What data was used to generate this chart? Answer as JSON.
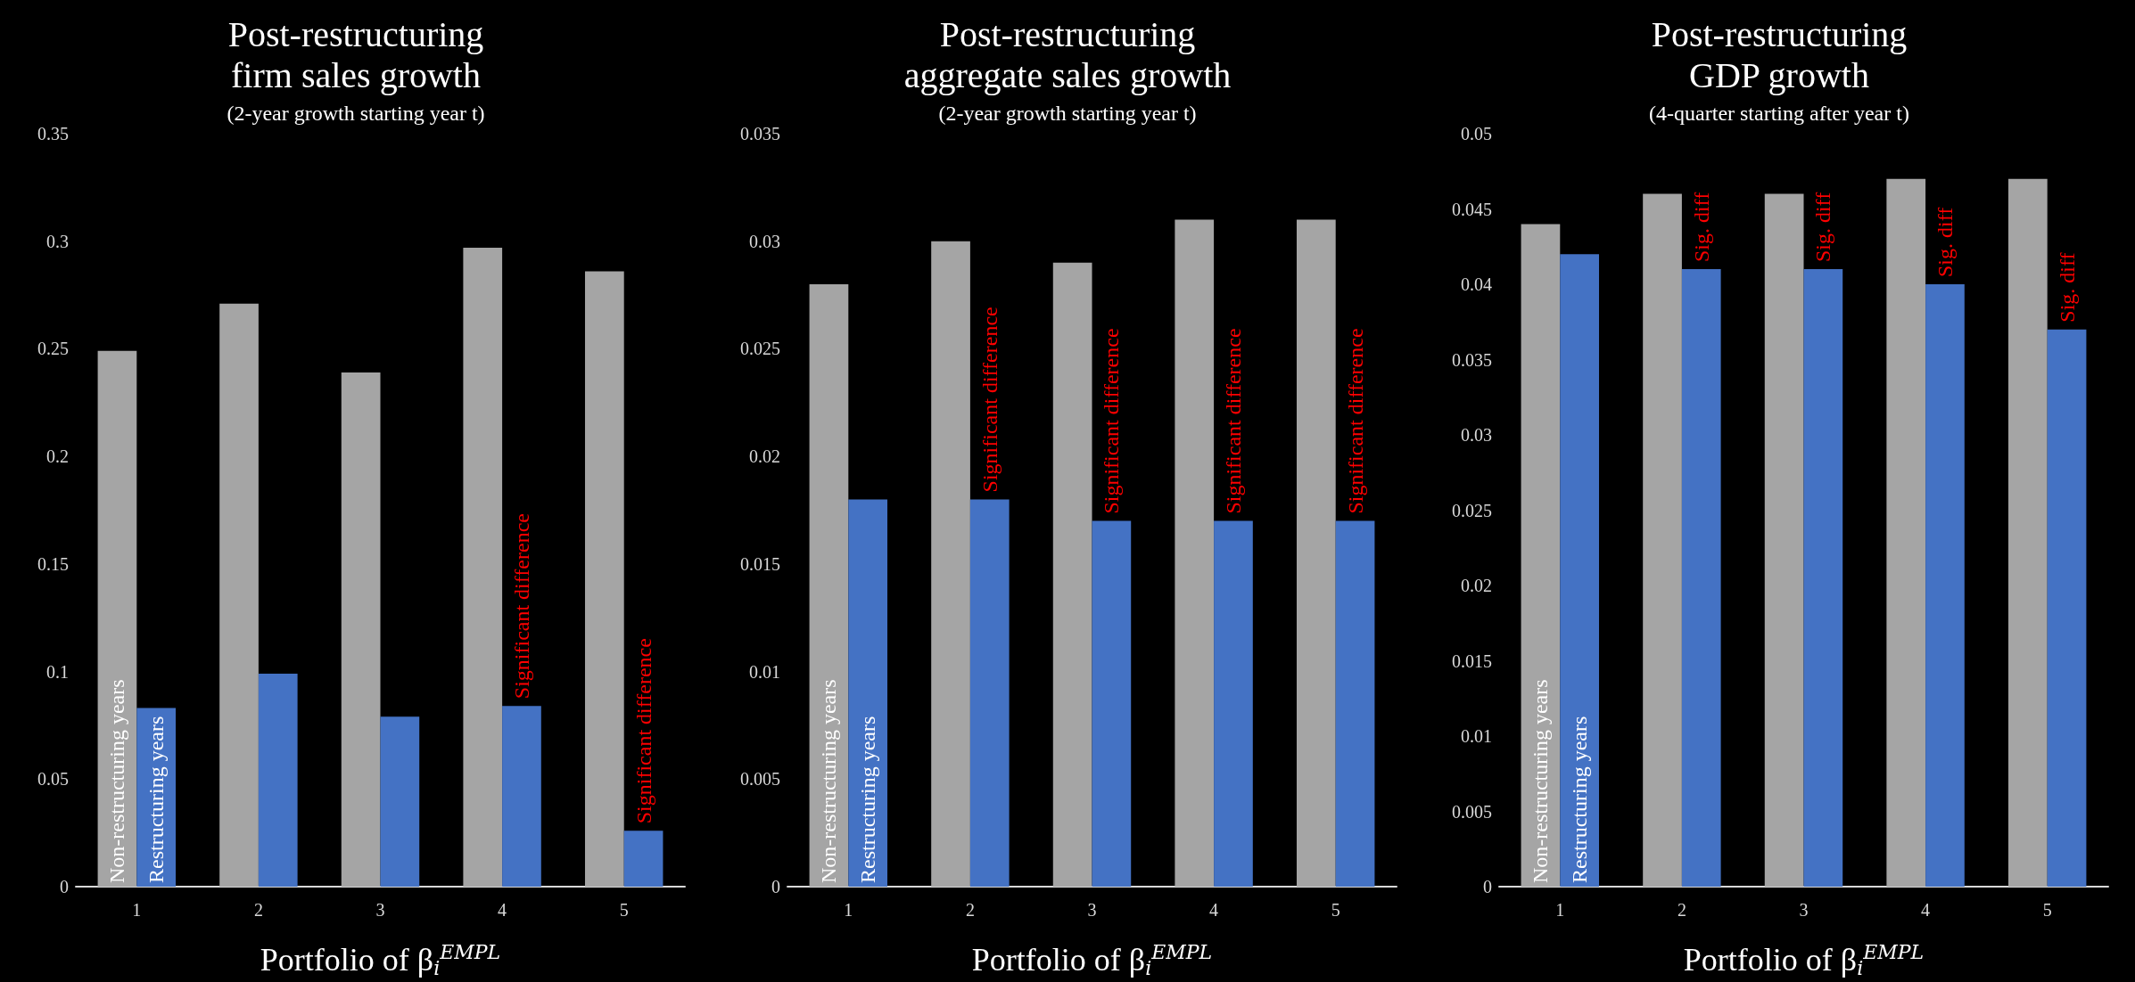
{
  "chart_data": [
    {
      "type": "bar",
      "title": "Post-restructuring\nfirm sales growth",
      "subtitle": "(2-year growth starting year t)",
      "xlabel": "Portfolio of β$_{i}$$^{EMPL}$",
      "categories": [
        "1",
        "2",
        "3",
        "4",
        "5"
      ],
      "series": [
        {
          "name": "Non-restructuring years",
          "color": "#a5a5a5",
          "values": [
            0.249,
            0.271,
            0.239,
            0.297,
            0.286
          ]
        },
        {
          "name": "Restructuring years",
          "color": "#4472c4",
          "values": [
            0.083,
            0.099,
            0.079,
            0.084,
            0.026
          ]
        }
      ],
      "ylim": [
        0,
        0.35
      ],
      "yticks": [
        0,
        0.05,
        0.1,
        0.15,
        0.2,
        0.25,
        0.3,
        0.35
      ],
      "grid": false,
      "legend": false,
      "annotations": [
        {
          "text": "Significant difference",
          "x": "4",
          "y": 0.084
        },
        {
          "text": "Significant difference",
          "x": "5",
          "y": 0.026
        }
      ]
    },
    {
      "type": "bar",
      "title": "Post-restructuring\naggregate sales growth",
      "subtitle": "(2-year growth starting year t)",
      "xlabel": "Portfolio of β$_{i}$$^{EMPL}$",
      "categories": [
        "1",
        "2",
        "3",
        "4",
        "5"
      ],
      "series": [
        {
          "name": "Non-restructuring years",
          "color": "#a5a5a5",
          "values": [
            0.028,
            0.03,
            0.029,
            0.031,
            0.031
          ]
        },
        {
          "name": "Restructuring years",
          "color": "#4472c4",
          "values": [
            0.018,
            0.018,
            0.017,
            0.017,
            0.017
          ]
        }
      ],
      "ylim": [
        0,
        0.035
      ],
      "yticks": [
        0,
        0.005,
        0.01,
        0.015,
        0.02,
        0.025,
        0.03,
        0.035
      ],
      "grid": false,
      "legend": false,
      "annotations": [
        {
          "text": "Significant difference",
          "x": "2",
          "y": 0.018
        },
        {
          "text": "Significant difference",
          "x": "3",
          "y": 0.017
        },
        {
          "text": "Significant difference",
          "x": "4",
          "y": 0.017
        },
        {
          "text": "Significant difference",
          "x": "5",
          "y": 0.017
        }
      ]
    },
    {
      "type": "bar",
      "title": "Post-restructuring\nGDP growth",
      "subtitle": "(4-quarter starting after year t)",
      "xlabel": "Portfolio of β$_{i}$$^{EMPL}$",
      "categories": [
        "1",
        "2",
        "3",
        "4",
        "5"
      ],
      "series": [
        {
          "name": "Non-restructuring years",
          "color": "#a5a5a5",
          "values": [
            0.044,
            0.046,
            0.046,
            0.047,
            0.047
          ]
        },
        {
          "name": "Restructuring years",
          "color": "#4472c4",
          "values": [
            0.042,
            0.041,
            0.041,
            0.04,
            0.037
          ]
        }
      ],
      "ylim": [
        0,
        0.05
      ],
      "yticks": [
        0,
        0.005,
        0.01,
        0.015,
        0.02,
        0.025,
        0.03,
        0.035,
        0.04,
        0.045,
        0.05
      ],
      "grid": false,
      "legend": false,
      "annotations": [
        {
          "text": "Sig. diff",
          "x": "2",
          "y": 0.041
        },
        {
          "text": "Sig. diff",
          "x": "3",
          "y": 0.041
        },
        {
          "text": "Sig. diff",
          "x": "4",
          "y": 0.04
        },
        {
          "text": "Sig. diff",
          "x": "5",
          "y": 0.037
        }
      ]
    }
  ]
}
